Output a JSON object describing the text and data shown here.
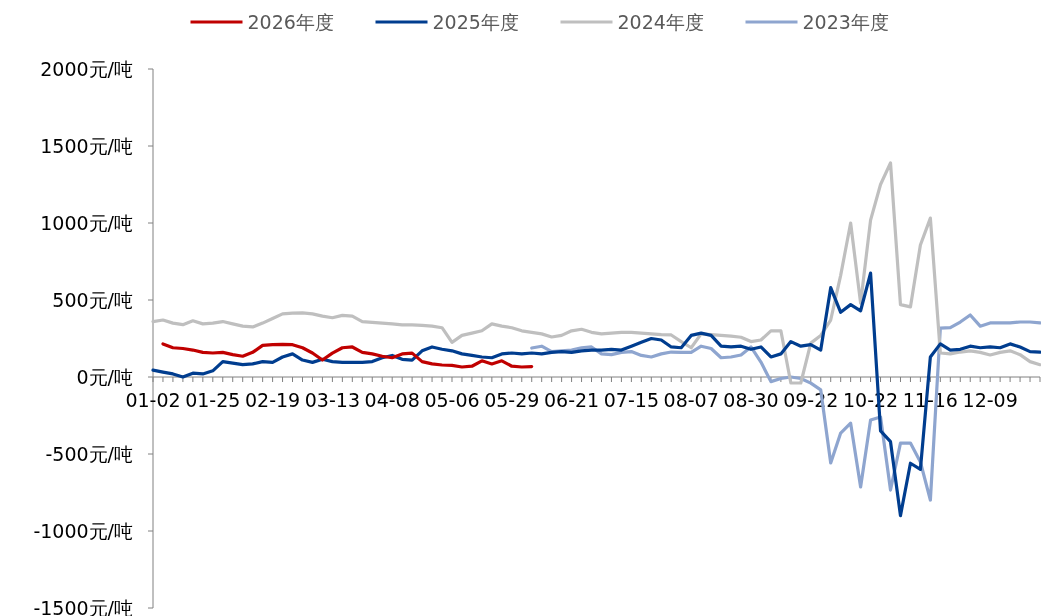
{
  "chart_data": {
    "type": "line",
    "legend": "top",
    "ylim": [
      -1500,
      2000
    ],
    "yticks": [
      {
        "value": -1500,
        "label": "-1500元/吨"
      },
      {
        "value": -1000,
        "label": "-1000元/吨"
      },
      {
        "value": -500,
        "label": "-500元/吨"
      },
      {
        "value": 0,
        "label": "0元/吨"
      },
      {
        "value": 500,
        "label": "500元/吨"
      },
      {
        "value": 1000,
        "label": "1000元/吨"
      },
      {
        "value": 1500,
        "label": "1500元/吨"
      },
      {
        "value": 2000,
        "label": "2000元/吨"
      }
    ],
    "categories": [
      "01-02",
      null,
      null,
      null,
      null,
      null,
      "01-25",
      null,
      null,
      null,
      null,
      null,
      "02-19",
      null,
      null,
      null,
      null,
      null,
      "03-13",
      null,
      null,
      null,
      null,
      null,
      "04-08",
      null,
      null,
      null,
      null,
      null,
      "05-06",
      null,
      null,
      null,
      null,
      null,
      "05-29",
      null,
      null,
      null,
      null,
      null,
      "06-21",
      null,
      null,
      null,
      null,
      null,
      "07-15",
      null,
      null,
      null,
      null,
      null,
      "08-07",
      null,
      null,
      null,
      null,
      null,
      "08-30",
      null,
      null,
      null,
      null,
      null,
      "09-22",
      null,
      null,
      null,
      null,
      null,
      "10-22",
      null,
      null,
      null,
      null,
      null,
      "11-16",
      null,
      null,
      null,
      null,
      null,
      "12-09",
      null,
      null,
      null,
      null,
      null
    ],
    "series": [
      {
        "name": "2026年度",
        "color": "#c00000",
        "values": [
          null,
          215,
          190,
          185,
          175,
          160,
          156,
          160,
          145,
          135,
          160,
          205,
          210,
          212,
          210,
          190,
          156,
          110,
          155,
          190,
          195,
          160,
          150,
          135,
          125,
          150,
          155,
          100,
          85,
          78,
          75,
          65,
          70,
          105,
          85,
          105,
          70,
          65,
          68,
          null,
          null,
          null,
          null,
          null,
          null,
          null,
          null,
          null,
          null,
          null,
          null,
          null,
          null,
          null,
          null,
          null,
          null,
          null,
          null,
          null,
          null,
          null,
          null,
          null,
          null,
          null,
          null,
          null,
          null,
          null,
          null,
          null,
          null,
          null,
          null,
          null,
          null,
          null,
          null,
          null,
          null,
          null,
          null,
          null,
          null,
          null,
          null,
          null,
          null,
          null
        ]
      },
      {
        "name": "2025年度",
        "color": "#003d8f",
        "values": [
          45,
          32,
          20,
          0,
          25,
          20,
          40,
          100,
          90,
          80,
          85,
          100,
          95,
          130,
          150,
          110,
          95,
          115,
          100,
          95,
          95,
          95,
          100,
          125,
          140,
          115,
          110,
          170,
          195,
          180,
          170,
          150,
          140,
          130,
          125,
          150,
          156,
          150,
          156,
          150,
          160,
          165,
          160,
          170,
          175,
          175,
          180,
          175,
          200,
          225,
          250,
          240,
          195,
          190,
          270,
          285,
          270,
          200,
          195,
          200,
          180,
          195,
          130,
          150,
          230,
          200,
          210,
          175,
          580,
          420,
          470,
          430,
          675,
          -350,
          -420,
          -900,
          -560,
          -600,
          130,
          215,
          175,
          180,
          200,
          190,
          195,
          190,
          215,
          195,
          165,
          162
        ]
      },
      {
        "name": "2024年度",
        "color": "#bfbfbf",
        "values": [
          360,
          370,
          350,
          340,
          365,
          345,
          350,
          360,
          345,
          330,
          325,
          350,
          380,
          410,
          415,
          416,
          410,
          395,
          385,
          400,
          395,
          360,
          355,
          350,
          345,
          338,
          338,
          335,
          330,
          320,
          225,
          270,
          285,
          300,
          345,
          330,
          320,
          300,
          290,
          280,
          260,
          270,
          300,
          310,
          290,
          280,
          285,
          290,
          290,
          285,
          280,
          275,
          273,
          230,
          190,
          280,
          275,
          270,
          265,
          258,
          230,
          240,
          300,
          300,
          -39,
          -39,
          220,
          270,
          370,
          660,
          1000,
          480,
          1019,
          1250,
          1390,
          470,
          455,
          857,
          1032,
          156,
          150,
          162,
          170,
          160,
          143,
          160,
          170,
          145,
          100,
          80
        ]
      },
      {
        "name": "2023年度",
        "color": "#8ea5cf",
        "values": [
          null,
          null,
          null,
          null,
          null,
          null,
          null,
          null,
          null,
          null,
          null,
          null,
          null,
          null,
          null,
          null,
          null,
          null,
          null,
          null,
          null,
          null,
          null,
          null,
          null,
          null,
          null,
          null,
          null,
          null,
          null,
          null,
          null,
          null,
          null,
          null,
          null,
          null,
          188,
          200,
          165,
          170,
          175,
          190,
          195,
          150,
          145,
          160,
          165,
          140,
          130,
          150,
          162,
          160,
          160,
          200,
          185,
          125,
          130,
          143,
          195,
          97,
          -30,
          -10,
          0,
          -10,
          -40,
          -84,
          -558,
          -364,
          -300,
          -714,
          -279,
          -260,
          -734,
          -429,
          -429,
          -552,
          -799,
          318,
          320,
          357,
          403,
          330,
          351,
          351,
          351,
          357,
          357,
          351
        ]
      }
    ]
  }
}
